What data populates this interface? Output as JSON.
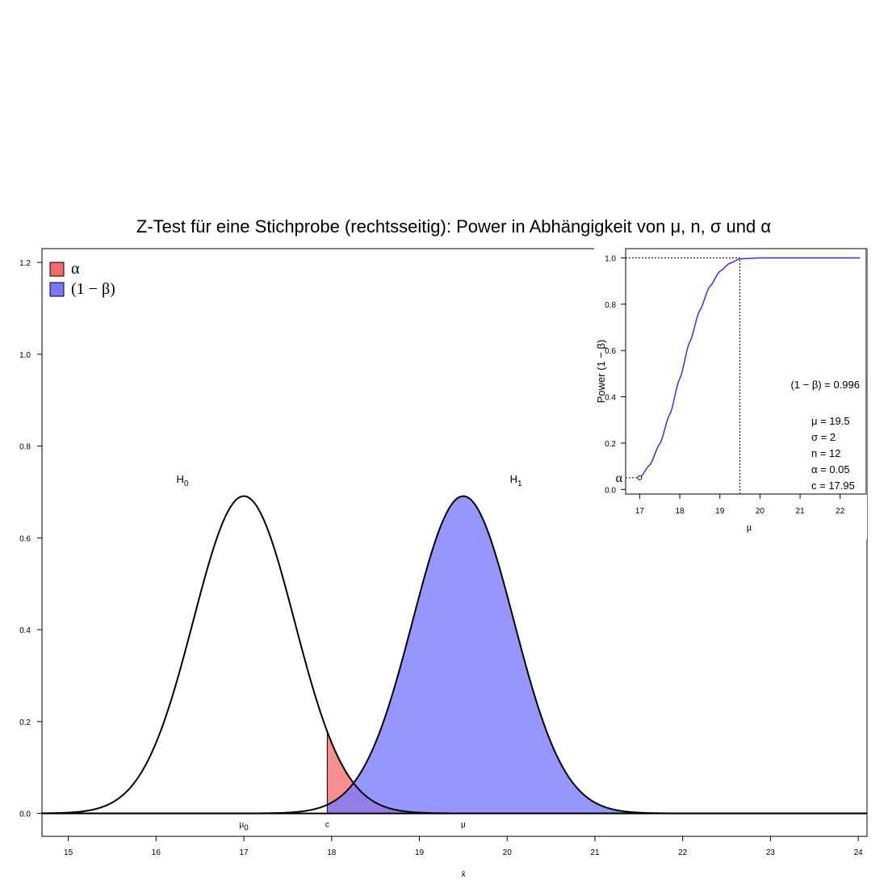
{
  "title": "Z-Test für eine Stichprobe (rechtsseitig): Power in Abhängigkeit von μ, n, σ und α",
  "legend": [
    {
      "label": "α",
      "color": "#f46a6a"
    },
    {
      "label": "(1 − β)",
      "color": "#7878ff"
    }
  ],
  "chart_data": [
    {
      "type": "area",
      "title": "Z-Test für eine Stichprobe (rechtsseitig): Power in Abhängigkeit von μ, n, σ und α",
      "xlabel": "x̄",
      "ylabel": "",
      "xlim": [
        14.7,
        24.1
      ],
      "ylim": [
        -0.05,
        1.23
      ],
      "xticks": [
        15,
        16,
        17,
        18,
        19,
        20,
        21,
        22,
        23,
        24
      ],
      "yticks": [
        0.0,
        0.2,
        0.4,
        0.6,
        0.8,
        1.0,
        1.2
      ],
      "legend_position": "top-left",
      "grid": false,
      "series": [
        {
          "name": "H0",
          "distribution": "normal",
          "mean": 17,
          "sd": 0.577,
          "peak_density": 0.691
        },
        {
          "name": "H1",
          "distribution": "normal",
          "mean": 19.5,
          "sd": 0.577,
          "peak_density": 0.691
        }
      ],
      "shaded_regions": [
        {
          "name": "α",
          "under": "H0",
          "from": 17.95,
          "to": 24.1,
          "color": "#f46a6a"
        },
        {
          "name": "(1 − β)",
          "under": "H1",
          "from": 17.95,
          "to": 24.1,
          "color": "#7878ff"
        }
      ],
      "curve_labels": [
        {
          "text": "H0",
          "x": 16.3,
          "y": 0.72
        },
        {
          "text": "H1",
          "x": 20.1,
          "y": 0.72
        }
      ],
      "x_markers": [
        {
          "text": "μ0",
          "x": 17
        },
        {
          "text": "c",
          "x": 17.95
        },
        {
          "text": "μ",
          "x": 19.5
        }
      ]
    },
    {
      "type": "line",
      "title": "",
      "xlabel": "μ",
      "ylabel": "Power (1 − β)",
      "xlim": [
        16.65,
        22.65
      ],
      "ylim": [
        -0.02,
        1.04
      ],
      "xticks": [
        17,
        18,
        19,
        20,
        21,
        22
      ],
      "yticks": [
        0.0,
        0.2,
        0.4,
        0.6,
        0.8,
        1.0
      ],
      "series": [
        {
          "name": "Power",
          "x": [
            17.0,
            17.25,
            17.5,
            17.75,
            18.0,
            18.25,
            18.5,
            18.75,
            19.0,
            19.25,
            19.5,
            19.75,
            20.0,
            21.0,
            22.0,
            22.5
          ],
          "y": [
            0.05,
            0.105,
            0.196,
            0.324,
            0.479,
            0.637,
            0.774,
            0.877,
            0.942,
            0.977,
            0.996,
            0.998,
            1.0,
            1.0,
            1.0,
            1.0
          ],
          "color": "#3333ee"
        }
      ],
      "alpha_label": "α",
      "marker_mu": 19.5,
      "annotations": {
        "power": "(1 − β) = 0.996",
        "mu": "μ = 19.5",
        "sigma": "σ = 2",
        "n": "n = 12",
        "alpha": "α = 0.05",
        "c": "c = 17.95"
      }
    }
  ]
}
